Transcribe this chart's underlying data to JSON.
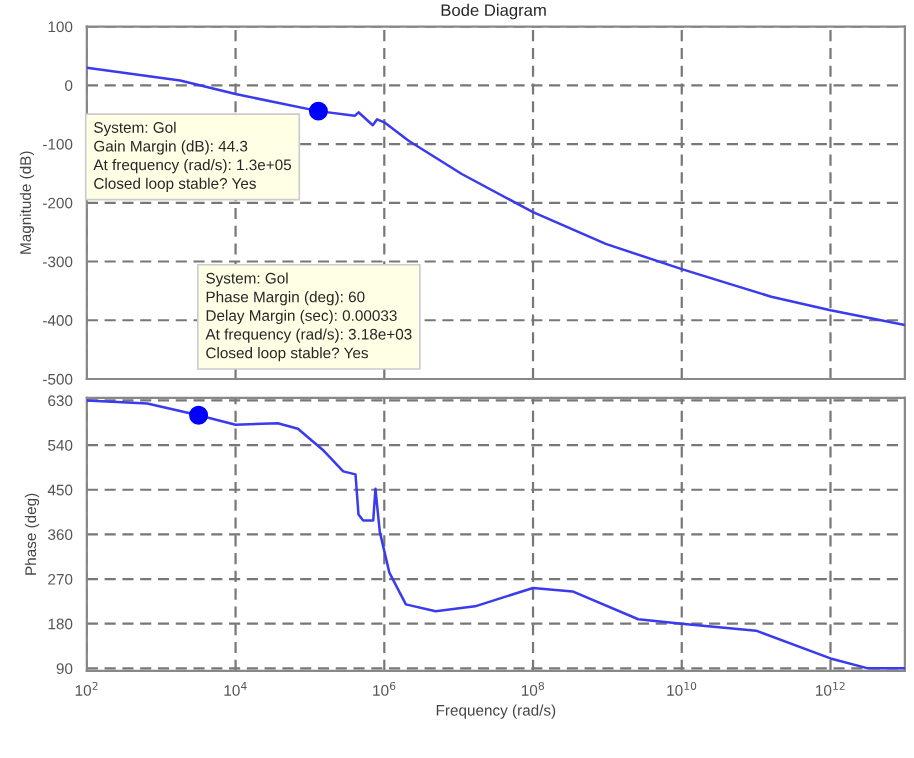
{
  "chart_data": [
    {
      "type": "line",
      "title": "Bode Diagram",
      "ylabel": "Magnitude (dB)",
      "log": "x",
      "grid": true,
      "tick_labels": "y",
      "line_style": "solid",
      "xlim": [
        100,
        10000000000000.0
      ],
      "xticks": [
        {
          "value": 100,
          "label": null
        },
        {
          "value": 10000.0,
          "label": null
        },
        {
          "value": 1000000.0,
          "label": null
        },
        {
          "value": 100000000.0,
          "label": null
        },
        {
          "value": 10000000000.0,
          "label": null
        },
        {
          "value": 1000000000000.0,
          "label": null
        }
      ],
      "ylim": [
        -500,
        100
      ],
      "yticks": [
        -500,
        -400,
        -300,
        -200,
        -100,
        0,
        100
      ],
      "x": [
        100,
        1800,
        10000.0,
        130000.0,
        400000.0,
        450000.0,
        700000.0,
        800000.0,
        1000000.0,
        2100000.0,
        11000000.0,
        100000000.0,
        950000000.0,
        10000000000.0,
        160000000000.0,
        1000000000000.0,
        10000000000000.0
      ],
      "series": [
        {
          "color": "#3a3aee",
          "values": [
            30,
            8,
            -15,
            -44,
            -52,
            -46,
            -68,
            -58,
            -63,
            -94,
            -151,
            -216,
            -270,
            -313,
            -360,
            -383,
            -408
          ]
        },
        {
          "type": "scatter",
          "marker": "circle",
          "color": "#0000ff",
          "x": [
            130000.0
          ],
          "values": [
            -44
          ]
        }
      ],
      "annotations": [
        "System: Gol\nGain Margin (dB): 44.3\nAt frequency (rad/s): 1.3e+05\nClosed loop stable? Yes"
      ]
    },
    {
      "type": "line",
      "xlabel": "Frequency (rad/s)",
      "ylabel": "Phase (deg)",
      "log": "x",
      "grid": true,
      "line_style": "solid",
      "xlim": [
        100,
        10000000000000.0
      ],
      "xticks": [
        {
          "value": 100,
          "label": "10$^{2}$"
        },
        {
          "value": 10000.0,
          "label": "10$^{4}$"
        },
        {
          "value": 1000000.0,
          "label": "10$^{6}$"
        },
        {
          "value": 100000000.0,
          "label": "10$^{8}$"
        },
        {
          "value": 10000000000.0,
          "label": "10$^{10}$"
        },
        {
          "value": 1000000000000.0,
          "label": "10$^{12}$"
        }
      ],
      "ylim": [
        85,
        635
      ],
      "yticks": [
        90,
        180,
        270,
        360,
        450,
        540,
        630
      ],
      "x": [
        100,
        650,
        3180,
        10000.0,
        37000.0,
        69000.0,
        155000.0,
        280000.0,
        410000.0,
        450000.0,
        520000.0,
        710000.0,
        760000.0,
        870000.0,
        1170000.0,
        1950000.0,
        4900000.0,
        16600000.0,
        100000000.0,
        340000000.0,
        2600000000.0,
        10000000000.0,
        100000000000.0,
        1000000000000.0,
        3200000000000.0,
        10000000000000.0
      ],
      "series": [
        {
          "color": "#3a3aee",
          "values": [
            630,
            624,
            600,
            581,
            584,
            573,
            528,
            487,
            481,
            400,
            388,
            388,
            452,
            365,
            283,
            219,
            205,
            215,
            252,
            245,
            189,
            180,
            166,
            110,
            90,
            90
          ]
        },
        {
          "type": "scatter",
          "marker": "circle",
          "color": "#0000ff",
          "x": [
            3180
          ],
          "values": [
            600
          ]
        }
      ],
      "annotations": [
        "System: Gol\nPhase Margin (deg): 60\nDelay Margin (sec): 0.00033\nAt frequency (rad/s): 3.18e+03\nClosed loop stable? Yes"
      ]
    }
  ]
}
